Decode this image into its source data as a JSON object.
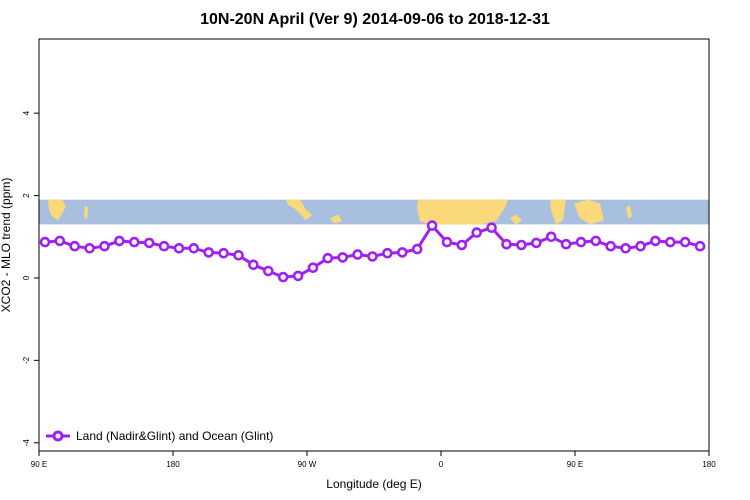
{
  "chart_data": {
    "type": "line",
    "title": "10N-20N April (Ver 9)   2014-09-06 to 2018-12-31",
    "xlabel": "Longitude (deg E)",
    "ylabel": "XCO2 - MLO trend (ppm)",
    "xlim": [
      -90,
      180
    ],
    "ylim": [
      -4.2,
      5.8
    ],
    "xticks": [
      {
        "value": -90,
        "label": "90 E"
      },
      {
        "value": -36,
        "label": "180"
      },
      {
        "value": 18,
        "label": "90 W"
      },
      {
        "value": 72,
        "label": "0"
      },
      {
        "value": 126,
        "label": "90 E"
      },
      {
        "value": 180,
        "label": "180"
      }
    ],
    "yticks": [
      {
        "value": -4,
        "label": "-4"
      },
      {
        "value": -2,
        "label": "-2"
      },
      {
        "value": 0,
        "label": "0"
      },
      {
        "value": 2,
        "label": "2"
      },
      {
        "value": 4,
        "label": "4"
      }
    ],
    "background_map": {
      "y_range": [
        1.3,
        1.9
      ],
      "ocean_color": "#a8bfdf",
      "land_color": "#f9d97a"
    },
    "series": [
      {
        "name": "Land (Nadir&Glint) and Ocean (Glint)",
        "color": "#a020f0",
        "x": [
          -87.6,
          -81.6,
          -75.6,
          -69.6,
          -63.6,
          -57.6,
          -51.6,
          -45.6,
          -39.6,
          -33.6,
          -27.6,
          -21.6,
          -15.6,
          -9.6,
          -3.6,
          2.4,
          8.4,
          14.4,
          20.4,
          26.4,
          32.4,
          38.4,
          44.4,
          50.4,
          56.4,
          62.4,
          68.4,
          74.4,
          80.4,
          86.4,
          92.4,
          98.4,
          104.4,
          110.4,
          116.4,
          122.4,
          128.4,
          134.4,
          140.4,
          146.4,
          152.4,
          158.4,
          164.4,
          170.4,
          176.4
        ],
        "y": [
          0.87,
          0.9,
          0.77,
          0.72,
          0.77,
          0.9,
          0.87,
          0.85,
          0.77,
          0.72,
          0.72,
          0.62,
          0.6,
          0.55,
          0.32,
          0.17,
          0.02,
          0.05,
          0.25,
          0.48,
          0.5,
          0.57,
          0.52,
          0.6,
          0.62,
          0.7,
          1.27,
          0.87,
          0.8,
          1.1,
          1.22,
          0.82,
          0.8,
          0.85,
          1.0,
          0.82,
          0.87,
          0.9,
          0.77,
          0.72,
          0.77,
          0.9,
          0.87,
          0.87,
          0.77
        ]
      }
    ],
    "legend": {
      "position": "bottom-left"
    }
  }
}
